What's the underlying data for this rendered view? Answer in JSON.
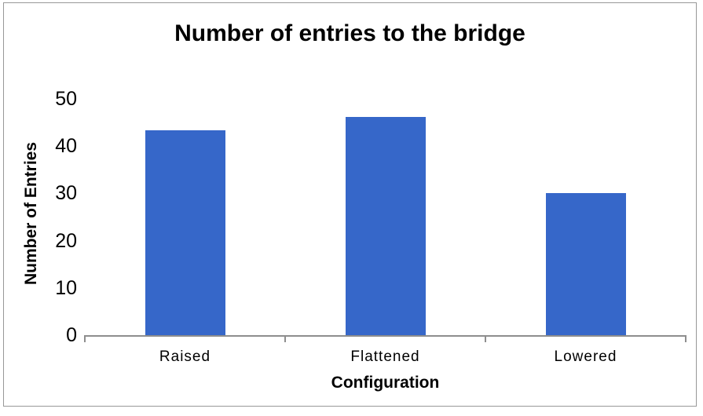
{
  "chart_data": {
    "type": "bar",
    "title": "Number of entries to the bridge",
    "xlabel": "Configuration",
    "ylabel": "Number of Entries",
    "categories": [
      "Raised",
      "Flattened",
      "Lowered"
    ],
    "values": [
      43.4,
      46.2,
      30.1
    ],
    "y_ticks": [
      0,
      10,
      20,
      30,
      40,
      50
    ],
    "ylim": [
      0,
      54
    ],
    "grid": false,
    "legend": false,
    "bar_color": "#3667C9",
    "axis_color": "#8E8E8E",
    "text_color": "#000000",
    "frame_color": "#989898"
  }
}
